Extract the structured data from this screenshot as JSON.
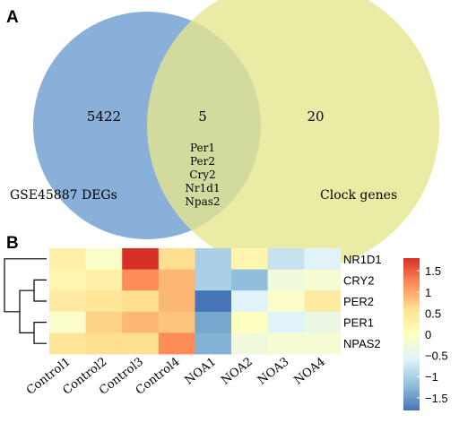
{
  "panel_a": {
    "letter": "A",
    "left_set_label": "GSE45887 DEGs",
    "right_set_label": "Clock genes",
    "left_only_count": "5422",
    "overlap_count": "5",
    "right_only_count": "20",
    "overlap_genes": [
      "Per1",
      "Per2",
      "Cry2",
      "Nr1d1",
      "Npas2"
    ],
    "colors": {
      "left": "#6e9fd0",
      "right": "#e5e68f"
    }
  },
  "panel_b": {
    "letter": "B"
  },
  "chart_data": [
    {
      "type": "venn",
      "sets": [
        {
          "label": "GSE45887 DEGs",
          "only_count": 5422
        },
        {
          "label": "Clock genes",
          "only_count": 20
        }
      ],
      "intersection_count": 5,
      "intersection_items": [
        "Per1",
        "Per2",
        "Cry2",
        "Nr1d1",
        "Npas2"
      ]
    },
    {
      "type": "heatmap",
      "rows": [
        "NR1D1",
        "CRY2",
        "PER2",
        "PER1",
        "NPAS2"
      ],
      "columns": [
        "Control1",
        "Control2",
        "Control3",
        "Control4",
        "NOA1",
        "NOA2",
        "NOA3",
        "NOA4"
      ],
      "values": [
        [
          0.3,
          -0.1,
          1.8,
          0.6,
          -1.0,
          0.2,
          -0.8,
          -0.6
        ],
        [
          0.2,
          0.3,
          1.2,
          0.9,
          -1.0,
          -1.2,
          -0.3,
          -0.2
        ],
        [
          0.4,
          0.5,
          0.6,
          0.9,
          -1.8,
          -0.6,
          -0.1,
          0.4
        ],
        [
          -0.1,
          0.7,
          0.9,
          0.8,
          -1.4,
          0.0,
          -0.6,
          -0.4
        ],
        [
          0.5,
          0.6,
          0.6,
          1.2,
          -1.3,
          -0.3,
          -0.2,
          -0.2
        ]
      ],
      "colorbar": {
        "range": [
          -1.8,
          1.8
        ],
        "ticks": [
          1.5,
          1,
          0.5,
          0,
          -0.5,
          -1,
          -1.5
        ]
      },
      "dendrogram": "rows",
      "palette": [
        "#4575b4",
        "#91bfdb",
        "#e0f3f8",
        "#ffffbf",
        "#fee090",
        "#fc8d59",
        "#d73027"
      ]
    }
  ]
}
